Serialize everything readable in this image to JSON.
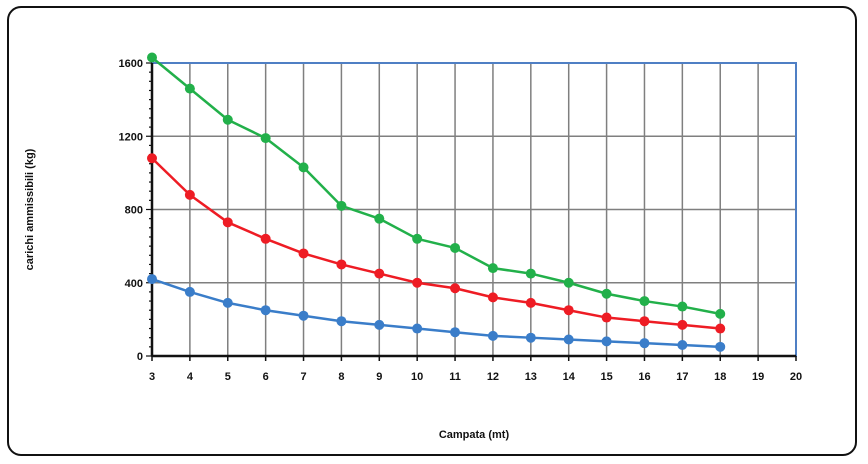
{
  "chart_data": {
    "type": "line",
    "xlabel": "Campata (mt)",
    "ylabel": "carichi ammissibili (kg)",
    "xlim": [
      3,
      20
    ],
    "ylim": [
      0,
      1600
    ],
    "x_ticks": [
      "3",
      "4",
      "5",
      "6",
      "7",
      "8",
      "9",
      "10",
      "11",
      "12",
      "13",
      "14",
      "15",
      "16",
      "17",
      "18",
      "19",
      "20"
    ],
    "y_ticks": [
      {
        "value": 0,
        "label": "0"
      },
      {
        "value": 400,
        "label": "400"
      },
      {
        "value": 800,
        "label": "800"
      },
      {
        "value": 1200,
        "label": "1200"
      },
      {
        "value": 1600,
        "label": "1600"
      }
    ],
    "grid": true,
    "series": [
      {
        "color": "#22b04a",
        "x": [
          3,
          4,
          5,
          6,
          7,
          8,
          9,
          10,
          11,
          12,
          13,
          14,
          15,
          16,
          17,
          18
        ],
        "values": [
          1630,
          1460,
          1290,
          1190,
          1030,
          820,
          750,
          640,
          590,
          480,
          450,
          400,
          340,
          300,
          270,
          230
        ]
      },
      {
        "color": "#ee1c24",
        "x": [
          3,
          4,
          5,
          6,
          7,
          8,
          9,
          10,
          11,
          12,
          13,
          14,
          15,
          16,
          17,
          18
        ],
        "values": [
          1080,
          880,
          730,
          640,
          560,
          500,
          450,
          400,
          370,
          320,
          290,
          250,
          210,
          190,
          170,
          150
        ]
      },
      {
        "color": "#3a7dc9",
        "x": [
          3,
          4,
          5,
          6,
          7,
          8,
          9,
          10,
          11,
          12,
          13,
          14,
          15,
          16,
          17,
          18
        ],
        "values": [
          420,
          350,
          290,
          250,
          220,
          190,
          170,
          150,
          130,
          110,
          100,
          90,
          80,
          70,
          60,
          50
        ]
      }
    ],
    "colors": {
      "plot_border": "#4f7fc4",
      "grid": "#7f7f7f",
      "axis": "#111111"
    }
  }
}
